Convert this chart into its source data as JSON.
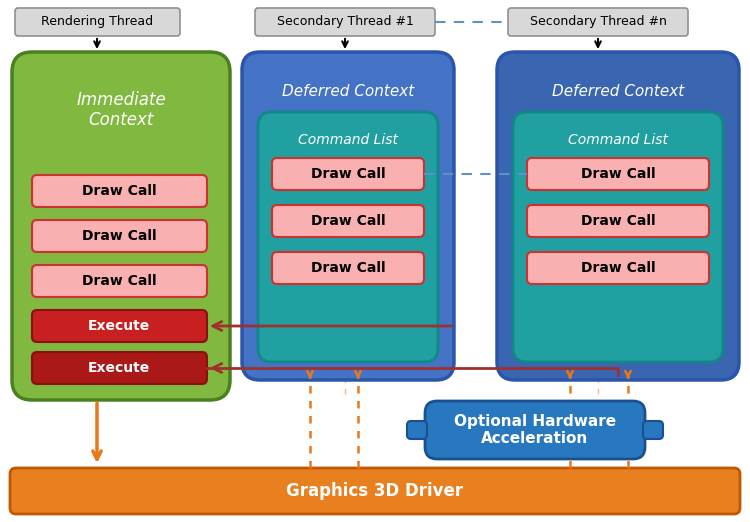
{
  "bg_color": "#ffffff",
  "rendering_thread_label": "Rendering Thread",
  "secondary_thread1_label": "Secondary Thread #1",
  "secondary_threadn_label": "Secondary Thread #n",
  "immediate_context_label": "Immediate\nContext",
  "deferred_context_label": "Deferred Context",
  "command_list_label": "Command List",
  "draw_call_label": "Draw Call",
  "execute_label": "Execute",
  "optional_hw_label": "Optional Hardware\nAcceleration",
  "graphics_driver_label": "Graphics 3D Driver",
  "green_bg": "#80b840",
  "green_border": "#4a8020",
  "blue_bg1": "#4472c4",
  "blue_bg2": "#3a65b0",
  "teal_bg": "#20a0a0",
  "teal_border": "#108888",
  "pink_box": "#f8b0b0",
  "pink_border": "#cc3030",
  "red_box": "#c82020",
  "red_box2": "#aa1818",
  "red_border": "#881010",
  "orange_color": "#e87818",
  "driver_bg": "#e88020",
  "driver_border": "#c05800",
  "hw_bg": "#2878c0",
  "hw_border": "#1a5090",
  "thread_box_bg": "#d8d8d8",
  "thread_box_border": "#909090",
  "dashed_blue": "#6090cc",
  "arrow_red": "#a03030",
  "vert_orange_line": "#e8a060"
}
